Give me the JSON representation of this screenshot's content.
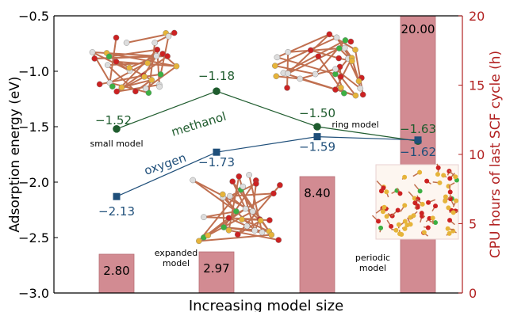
{
  "chart_data": {
    "type": "bar+line",
    "xlabel": "Increasing model size",
    "ylabel_left": "Adsorption energy (eV)",
    "ylabel_right": "CPU hours of last SCF cycle (h)",
    "ylim_left": [
      -3.0,
      -0.5
    ],
    "ylim_right": [
      0,
      20
    ],
    "yticks_left": [
      "-3.0",
      "-2.5",
      "-2.0",
      "-1.5",
      "-1.0",
      "-0.5"
    ],
    "yticks_right": [
      "0",
      "5",
      "10",
      "15",
      "20"
    ],
    "categories": [
      "small model",
      "expanded model",
      "ring model",
      "periodic model"
    ],
    "bars": {
      "name": "CPU hours",
      "values": [
        2.8,
        2.97,
        8.4,
        20.0
      ],
      "labels": [
        "2.80",
        "2.97",
        "8.40",
        "20.00"
      ],
      "color": "#d28b92"
    },
    "series": [
      {
        "name": "methanol",
        "values": [
          -1.52,
          -1.18,
          -1.5,
          -1.63
        ],
        "labels": [
          "-1.52",
          "-1.18",
          "-1.50",
          "-1.63"
        ],
        "color": "#1f5c2e"
      },
      {
        "name": "oxygen",
        "values": [
          -2.13,
          -1.73,
          -1.59,
          -1.62
        ],
        "labels": [
          "-2.13",
          "-1.73",
          "-1.59",
          "-1.62"
        ],
        "color": "#1f4f7a"
      }
    ],
    "annotations": {
      "small": "small model",
      "expanded": [
        "expanded",
        "model"
      ],
      "ring": "ring model",
      "periodic": [
        "periodic",
        "model"
      ]
    },
    "right_axis_color": "#b22222"
  }
}
